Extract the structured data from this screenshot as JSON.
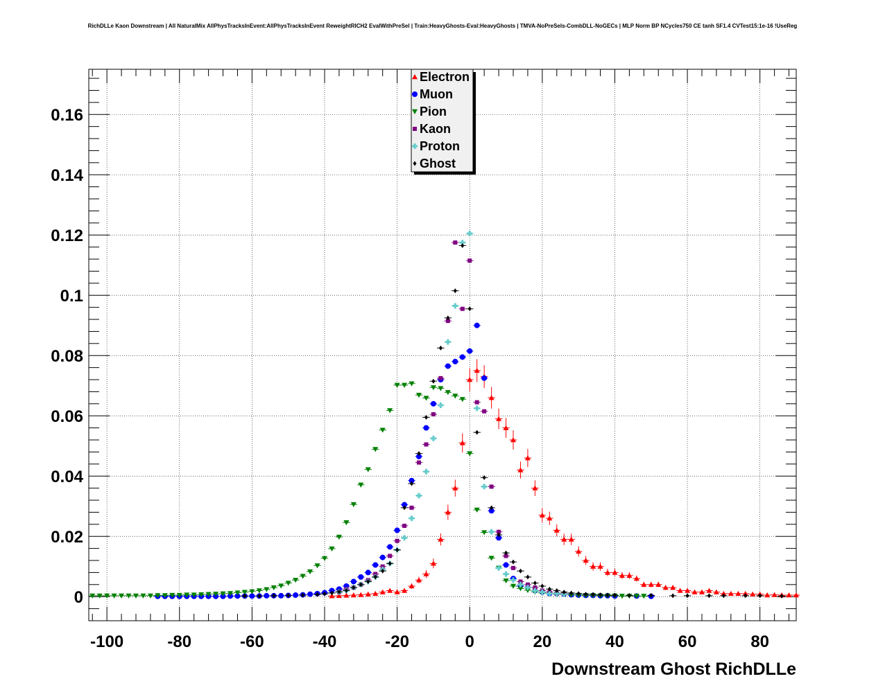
{
  "title": "RichDLLe Kaon Downstream | All NaturalMix AllPhysTracksInEvent:AllPhysTracksInEvent ReweightRICH2 EvalWithPreSel | Train:HeavyGhosts-Eval:HeavyGhosts | TMVA-NoPreSels-CombDLL-NoGECs | MLP Norm BP NCycles750 CE tanh SF1.4 CVTest15:1e-16 !UseReg",
  "chart_data": {
    "type": "scatter",
    "title": "RichDLLe Kaon Downstream | All NaturalMix AllPhysTracksInEvent:AllPhysTracksInEvent ReweightRICH2 EvalWithPreSel | Train:HeavyGhosts-Eval:HeavyGhosts | TMVA-NoPreSels-CombDLL-NoGECs | MLP Norm BP NCycles750 CE tanh SF1.4 CVTest15:1e-16 !UseReg",
    "xlabel": "Downstream Ghost RichDLLe",
    "ylabel": "",
    "xlim": [
      -105,
      90
    ],
    "ylim": [
      -0.008,
      0.175
    ],
    "xticks": [
      -100,
      -80,
      -60,
      -40,
      -20,
      0,
      20,
      40,
      60,
      80
    ],
    "yticks": [
      0,
      0.02,
      0.04,
      0.06,
      0.08,
      0.1,
      0.12,
      0.14,
      0.16
    ],
    "ytick_labels": [
      "0",
      "0.02",
      "0.04",
      "0.06",
      "0.08",
      "0.1",
      "0.12",
      "0.14",
      "0.16"
    ],
    "grid": true,
    "legend_position": "top-center",
    "series": [
      {
        "name": "Electron",
        "color": "#ff0000",
        "marker": "triangle-up",
        "x": [
          -38,
          -36,
          -34,
          -32,
          -30,
          -28,
          -26,
          -24,
          -22,
          -20,
          -18,
          -16,
          -14,
          -12,
          -10,
          -8,
          -6,
          -4,
          -2,
          0,
          2,
          4,
          6,
          8,
          10,
          12,
          14,
          16,
          18,
          20,
          22,
          24,
          26,
          28,
          30,
          32,
          34,
          36,
          38,
          40,
          42,
          44,
          46,
          48,
          50,
          52,
          54,
          56,
          58,
          60,
          62,
          64,
          66,
          68,
          70,
          72,
          74,
          76,
          78,
          80,
          82,
          84,
          86,
          88,
          90
        ],
        "y": [
          0.0002,
          0.0003,
          0.0004,
          0.0005,
          0.0006,
          0.0008,
          0.001,
          0.0015,
          0.002,
          0.0015,
          0.002,
          0.0035,
          0.0055,
          0.0075,
          0.011,
          0.019,
          0.028,
          0.036,
          0.051,
          0.072,
          0.075,
          0.073,
          0.066,
          0.059,
          0.056,
          0.052,
          0.042,
          0.046,
          0.036,
          0.027,
          0.026,
          0.022,
          0.019,
          0.019,
          0.015,
          0.012,
          0.01,
          0.01,
          0.008,
          0.008,
          0.007,
          0.007,
          0.006,
          0.004,
          0.004,
          0.004,
          0.003,
          0.003,
          0.002,
          0.002,
          0.0015,
          0.0015,
          0.002,
          0.0015,
          0.001,
          0.001,
          0.001,
          0.001,
          0.0008,
          0.0008,
          0.0005,
          0.0006,
          0.0005,
          0.0005,
          0.0005
        ],
        "err": [
          0.0002,
          0.0002,
          0.0003,
          0.0003,
          0.0003,
          0.0004,
          0.0005,
          0.0006,
          0.0007,
          0.0006,
          0.0007,
          0.0009,
          0.0011,
          0.0013,
          0.0016,
          0.002,
          0.0025,
          0.0028,
          0.0032,
          0.0038,
          0.0038,
          0.0038,
          0.0036,
          0.0034,
          0.0033,
          0.0032,
          0.0028,
          0.003,
          0.0026,
          0.0023,
          0.0022,
          0.002,
          0.0019,
          0.0019,
          0.0017,
          0.0015,
          0.0014,
          0.0014,
          0.0012,
          0.0012,
          0.0011,
          0.0011,
          0.001,
          0.0009,
          0.0009,
          0.0009,
          0.0008,
          0.0008,
          0.0006,
          0.0006,
          0.0005,
          0.0005,
          0.0006,
          0.0005,
          0.0004,
          0.0004,
          0.0004,
          0.0004,
          0.0003,
          0.0003,
          0.0003,
          0.0003,
          0.0003,
          0.0003,
          0.0003
        ]
      },
      {
        "name": "Muon",
        "color": "#0000ff",
        "marker": "circle",
        "x": [
          -86,
          -84,
          -82,
          -80,
          -78,
          -76,
          -74,
          -72,
          -70,
          -68,
          -66,
          -64,
          -62,
          -60,
          -58,
          -56,
          -54,
          -52,
          -50,
          -48,
          -46,
          -44,
          -42,
          -40,
          -38,
          -36,
          -34,
          -32,
          -30,
          -28,
          -26,
          -24,
          -22,
          -20,
          -18,
          -16,
          -14,
          -12,
          -10,
          -8,
          -6,
          -4,
          -2,
          0,
          2,
          4,
          6,
          8,
          10,
          12,
          14,
          16,
          18,
          20,
          22,
          24,
          26,
          28,
          30,
          32,
          34,
          36,
          38,
          40,
          46,
          50
        ],
        "y": [
          0.0001,
          0.0001,
          0.0001,
          0.0001,
          0.0001,
          0.0001,
          0.0001,
          0.0001,
          0.0001,
          0.0001,
          0.0002,
          0.0002,
          0.0002,
          0.0002,
          0.0002,
          0.0003,
          0.0003,
          0.0003,
          0.0004,
          0.0005,
          0.0006,
          0.0008,
          0.001,
          0.0013,
          0.002,
          0.0025,
          0.0035,
          0.005,
          0.0065,
          0.008,
          0.0105,
          0.013,
          0.0165,
          0.022,
          0.0305,
          0.0385,
          0.0465,
          0.056,
          0.064,
          0.072,
          0.0765,
          0.078,
          0.0795,
          0.0815,
          0.09,
          0.0725,
          0.0285,
          0.0195,
          0.0105,
          0.006,
          0.0035,
          0.003,
          0.002,
          0.0015,
          0.001,
          0.001,
          0.0008,
          0.0006,
          0.0005,
          0.0004,
          0.0004,
          0.0003,
          0.0003,
          0.0002,
          0.0002,
          0.0001
        ]
      },
      {
        "name": "Pion",
        "color": "#008000",
        "marker": "triangle-down",
        "x": [
          -104,
          -102,
          -100,
          -98,
          -96,
          -94,
          -92,
          -90,
          -88,
          -86,
          -84,
          -82,
          -80,
          -78,
          -76,
          -74,
          -72,
          -70,
          -68,
          -66,
          -64,
          -62,
          -60,
          -58,
          -56,
          -54,
          -52,
          -50,
          -48,
          -46,
          -44,
          -42,
          -40,
          -38,
          -36,
          -34,
          -32,
          -30,
          -28,
          -26,
          -24,
          -22,
          -20,
          -18,
          -16,
          -14,
          -12,
          -10,
          -8,
          -6,
          -4,
          -2,
          0,
          2,
          4,
          6,
          8,
          10,
          12,
          14,
          16,
          18,
          20,
          22,
          24,
          26,
          28,
          30,
          32,
          34,
          36,
          38,
          40,
          42,
          44,
          46,
          48
        ],
        "y": [
          0.0003,
          0.0003,
          0.0003,
          0.0003,
          0.0003,
          0.0003,
          0.0003,
          0.0003,
          0.0003,
          0.0004,
          0.0004,
          0.0005,
          0.0005,
          0.0006,
          0.0006,
          0.0007,
          0.0008,
          0.0009,
          0.001,
          0.0011,
          0.0013,
          0.0015,
          0.0017,
          0.002,
          0.0024,
          0.003,
          0.0036,
          0.0045,
          0.0055,
          0.0068,
          0.0083,
          0.0103,
          0.0127,
          0.0159,
          0.0198,
          0.0246,
          0.0306,
          0.0371,
          0.0422,
          0.0489,
          0.0553,
          0.0618,
          0.0702,
          0.0702,
          0.0707,
          0.0669,
          0.0659,
          0.0694,
          0.0691,
          0.0678,
          0.0666,
          0.0655,
          0.0475,
          0.0288,
          0.0213,
          0.0128,
          0.0095,
          0.0053,
          0.0035,
          0.0027,
          0.0021,
          0.0016,
          0.0012,
          0.001,
          0.0008,
          0.0007,
          0.0006,
          0.0005,
          0.0004,
          0.0004,
          0.0003,
          0.0003,
          0.0003,
          0.0002,
          0.0002,
          0.0002,
          0.0002
        ]
      },
      {
        "name": "Kaon",
        "color": "#800080",
        "marker": "square",
        "x": [
          -36,
          -34,
          -32,
          -30,
          -28,
          -26,
          -24,
          -22,
          -20,
          -18,
          -16,
          -14,
          -12,
          -10,
          -8,
          -6,
          -4,
          -2,
          0,
          2,
          4,
          6,
          8,
          10,
          12,
          14,
          16,
          18,
          20,
          22,
          24,
          26
        ],
        "y": [
          0.0015,
          0.0025,
          0.003,
          0.004,
          0.0055,
          0.0075,
          0.01,
          0.0135,
          0.0185,
          0.0235,
          0.0295,
          0.0445,
          0.0505,
          0.0605,
          0.0725,
          0.0915,
          0.1175,
          0.0955,
          0.1115,
          0.0645,
          0.0615,
          0.0365,
          0.0215,
          0.0135,
          0.0095,
          0.005,
          0.004,
          0.003,
          0.002,
          0.0015,
          0.001,
          0.001
        ]
      },
      {
        "name": "Proton",
        "color": "#66cccc",
        "marker": "cross",
        "x": [
          -36,
          -34,
          -32,
          -30,
          -28,
          -26,
          -24,
          -22,
          -20,
          -18,
          -16,
          -14,
          -12,
          -10,
          -8,
          -6,
          -4,
          -2,
          0,
          2,
          4,
          6,
          8,
          10,
          12,
          14,
          16,
          18,
          20,
          22,
          24,
          26
        ],
        "y": [
          0.0015,
          0.002,
          0.003,
          0.004,
          0.005,
          0.0065,
          0.009,
          0.011,
          0.0155,
          0.0195,
          0.026,
          0.0335,
          0.0415,
          0.0525,
          0.0635,
          0.0845,
          0.0965,
          0.1175,
          0.1205,
          0.0625,
          0.0365,
          0.0215,
          0.0095,
          0.0075,
          0.0055,
          0.004,
          0.003,
          0.002,
          0.0015,
          0.001,
          0.001,
          0.0008
        ]
      },
      {
        "name": "Ghost",
        "color": "#000000",
        "marker": "diamond",
        "x": [
          -62,
          -58,
          -54,
          -50,
          -46,
          -42,
          -40,
          -38,
          -36,
          -34,
          -32,
          -30,
          -28,
          -26,
          -24,
          -22,
          -20,
          -18,
          -16,
          -14,
          -12,
          -10,
          -8,
          -6,
          -4,
          -2,
          0,
          2,
          4,
          6,
          8,
          10,
          12,
          14,
          16,
          18,
          20,
          22,
          24,
          26,
          28,
          30,
          32,
          34,
          36,
          38,
          40,
          44,
          50,
          56,
          60,
          66,
          70,
          76,
          80,
          86
        ],
        "y": [
          0.0002,
          0.0002,
          0.0003,
          0.0004,
          0.0005,
          0.0007,
          0.0009,
          0.0012,
          0.0016,
          0.002,
          0.003,
          0.004,
          0.005,
          0.0065,
          0.0085,
          0.011,
          0.0155,
          0.0295,
          0.0375,
          0.0475,
          0.0595,
          0.0715,
          0.0825,
          0.0925,
          0.1015,
          0.1165,
          0.0955,
          0.0545,
          0.0395,
          0.0295,
          0.0205,
          0.0145,
          0.0115,
          0.0085,
          0.0065,
          0.0045,
          0.0035,
          0.0025,
          0.002,
          0.0015,
          0.0012,
          0.001,
          0.0008,
          0.0007,
          0.0006,
          0.0005,
          0.0005,
          0.0004,
          0.0004,
          0.0003,
          0.0003,
          0.0003,
          0.0003,
          0.0003,
          0.0003,
          0.0002
        ]
      }
    ]
  }
}
